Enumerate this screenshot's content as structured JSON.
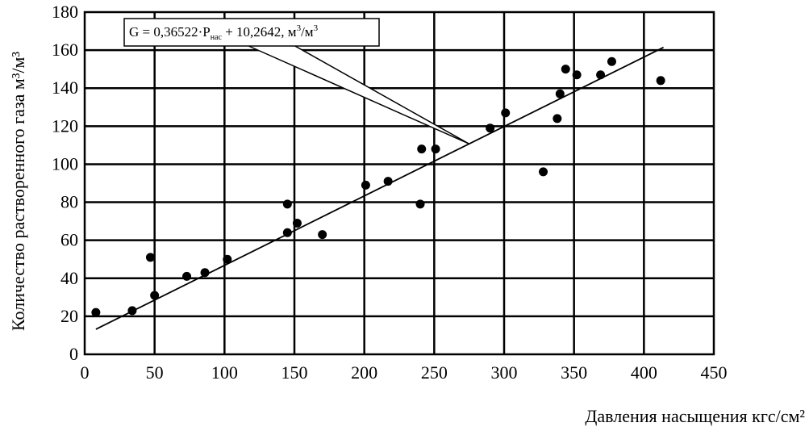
{
  "chart_data": {
    "type": "scatter",
    "title": "",
    "xlabel": "Давления насыщения кгс/см²",
    "ylabel": "Количество растворенного газа м³/м³",
    "xlim": [
      0,
      450
    ],
    "ylim": [
      0,
      180
    ],
    "xticks": [
      0,
      50,
      100,
      150,
      200,
      250,
      300,
      350,
      400,
      450
    ],
    "yticks": [
      0,
      20,
      40,
      60,
      80,
      100,
      120,
      140,
      160,
      180
    ],
    "grid": true,
    "legend": "none",
    "series": [
      {
        "points": [
          [
            8,
            22
          ],
          [
            34,
            23
          ],
          [
            47,
            51
          ],
          [
            50,
            31
          ],
          [
            73,
            41
          ],
          [
            86,
            43
          ],
          [
            102,
            50
          ],
          [
            145,
            79
          ],
          [
            145,
            64
          ],
          [
            152,
            69
          ],
          [
            170,
            63
          ],
          [
            201,
            89
          ],
          [
            217,
            91
          ],
          [
            240,
            79
          ],
          [
            241,
            108
          ],
          [
            251,
            108
          ],
          [
            290,
            119
          ],
          [
            301,
            127
          ],
          [
            328,
            96
          ],
          [
            338,
            124
          ],
          [
            340,
            137
          ],
          [
            344,
            150
          ],
          [
            352,
            147
          ],
          [
            369,
            147
          ],
          [
            377,
            154
          ],
          [
            412,
            144
          ]
        ]
      }
    ],
    "trendline": {
      "slope": 0.36522,
      "intercept": 10.2642,
      "x_range": [
        8,
        414
      ]
    },
    "annotation": {
      "prefix": "G = 0,36522·P",
      "subscript": "нас",
      "suffix": " + 10,2642, м",
      "sup1": "3",
      "slash": "/м",
      "sup2": "3",
      "pointer_x": 275
    }
  }
}
